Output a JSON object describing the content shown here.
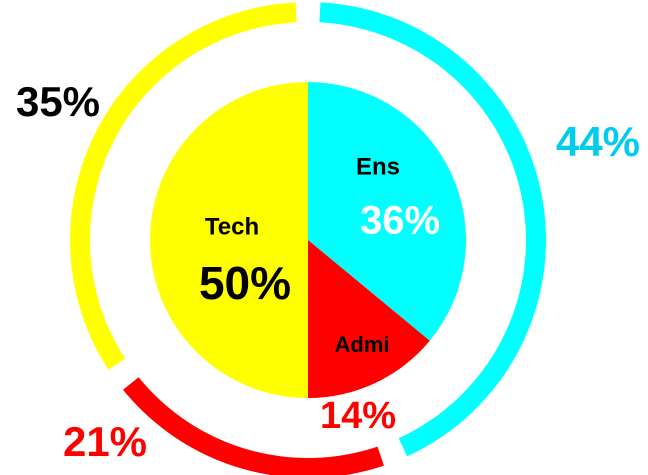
{
  "chart_data": [
    {
      "type": "pie",
      "categories": [
        "Ens",
        "Admi",
        "Tech"
      ],
      "values": [
        36,
        14,
        50
      ],
      "value_labels": [
        "36%",
        "14%",
        "50%"
      ],
      "colors": [
        "#00ffff",
        "#ff0000",
        "#ffff00"
      ],
      "label_colors": [
        "#ffffff",
        "#ff0000",
        "#000000"
      ]
    },
    {
      "type": "donut",
      "values": [
        44,
        21,
        35
      ],
      "value_labels": [
        "44%",
        "21%",
        "35%"
      ],
      "colors": [
        "#00ffff",
        "#ff0000",
        "#ffff00"
      ],
      "label_colors": [
        "#00ccee",
        "#ff0000",
        "#000000"
      ]
    }
  ]
}
